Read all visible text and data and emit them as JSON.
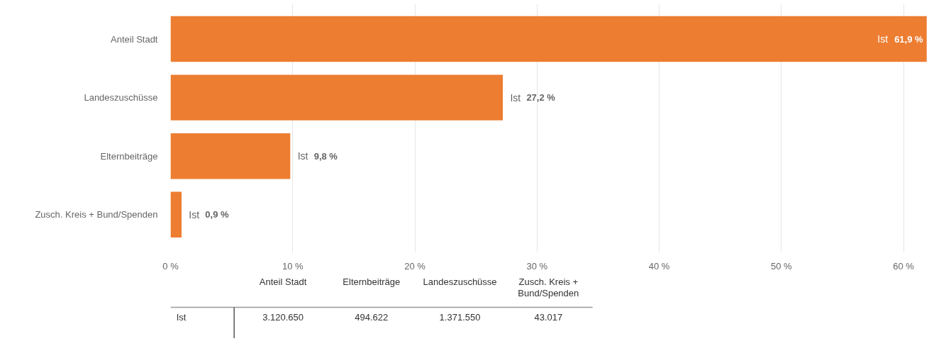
{
  "chart_data": [
    {
      "type": "bar",
      "orientation": "horizontal",
      "categories": [
        "Anteil Stadt",
        "Landeszuschüsse",
        "Elternbeiträge",
        "Zusch. Kreis + Bund/Spenden"
      ],
      "series": [
        {
          "name": "Ist",
          "color": "#ed7d31",
          "values": [
            61.9,
            27.2,
            9.8,
            0.9
          ],
          "value_labels": [
            "61,9 %",
            "27,2 %",
            "9,8 %",
            "0,9 %"
          ]
        }
      ],
      "xlim": [
        0,
        62
      ],
      "xticks": [
        {
          "value": 0,
          "label": "0 %"
        },
        {
          "value": 10,
          "label": "10 %"
        },
        {
          "value": 20,
          "label": "20 %"
        },
        {
          "value": 30,
          "label": "30 %"
        },
        {
          "value": 40,
          "label": "40 %"
        },
        {
          "value": 50,
          "label": "50 %"
        },
        {
          "value": 60,
          "label": "60 %"
        }
      ],
      "grid": "x"
    },
    {
      "type": "other",
      "categories": [
        "Anteil Stadt",
        "Elternbeiträge",
        "Landeszuschüsse",
        "Zusch. Kreis + Bund/Spenden"
      ],
      "series": [
        {
          "name": "Ist",
          "values": [
            3120650,
            494622,
            1371550,
            43017
          ],
          "value_labels": [
            "3.120.650",
            "494.622",
            "1.371.550",
            "43.017"
          ]
        }
      ]
    }
  ]
}
